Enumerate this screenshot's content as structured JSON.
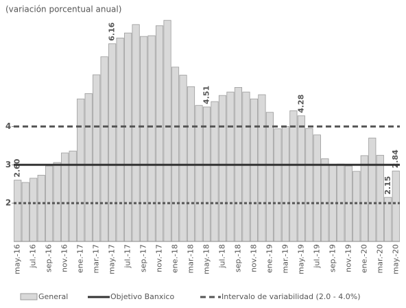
{
  "chart_data": {
    "type": "bar",
    "title": "(variación porcentual anual)",
    "categories": [
      "may.-16",
      null,
      "jul.-16",
      null,
      "sep.-16",
      null,
      "nov.-16",
      null,
      "ene.-17",
      null,
      "mar.-17",
      null,
      "may.-17",
      null,
      "jul.-17",
      null,
      "sep.-17",
      null,
      "nov.-17",
      null,
      "ene.-18",
      null,
      "mar.-18",
      null,
      "may.-18",
      null,
      "jul.-18",
      null,
      "sep.-18",
      null,
      "nov.-18",
      null,
      "ene.-19",
      null,
      "mar.-19",
      null,
      "may.-19",
      null,
      "jul.-19",
      null,
      "sep.-19",
      null,
      "nov.-19",
      null,
      "ene.-20",
      null,
      "mar.-20",
      null,
      "may.-20"
    ],
    "series": [
      {
        "name": "General",
        "color": "#d9d9d9",
        "values": [
          2.6,
          2.54,
          2.65,
          2.73,
          2.97,
          3.06,
          3.31,
          3.36,
          4.72,
          4.86,
          5.35,
          5.82,
          6.16,
          6.31,
          6.44,
          6.66,
          6.35,
          6.37,
          6.63,
          6.77,
          5.55,
          5.34,
          5.04,
          4.55,
          4.51,
          4.65,
          4.81,
          4.9,
          5.02,
          4.9,
          4.72,
          4.83,
          4.37,
          3.94,
          4.0,
          4.41,
          4.28,
          3.95,
          3.78,
          3.16,
          3.0,
          3.02,
          2.97,
          2.83,
          3.24,
          3.7,
          3.25,
          2.15,
          2.84
        ],
        "value_labels": [
          "2.60",
          null,
          null,
          null,
          null,
          null,
          null,
          null,
          null,
          null,
          null,
          null,
          "6.16",
          null,
          null,
          null,
          null,
          null,
          null,
          null,
          null,
          null,
          null,
          null,
          "4.51",
          null,
          null,
          null,
          null,
          null,
          null,
          null,
          null,
          null,
          null,
          null,
          "4.28",
          null,
          null,
          null,
          null,
          null,
          null,
          null,
          null,
          null,
          null,
          "2.15",
          "2.84"
        ]
      }
    ],
    "reference_lines": [
      {
        "name": "Objetivo Banxico",
        "color": "#333333",
        "style": "solid",
        "values": [
          3
        ]
      },
      {
        "name": "Intervalo de variabilidad (2.0 - 4.0%)",
        "color": "#555555",
        "style": "dashed",
        "values": [
          2,
          4
        ]
      }
    ],
    "ylim": [
      1,
      6.8
    ],
    "yticks": [
      2,
      3,
      4
    ],
    "grid": false
  }
}
